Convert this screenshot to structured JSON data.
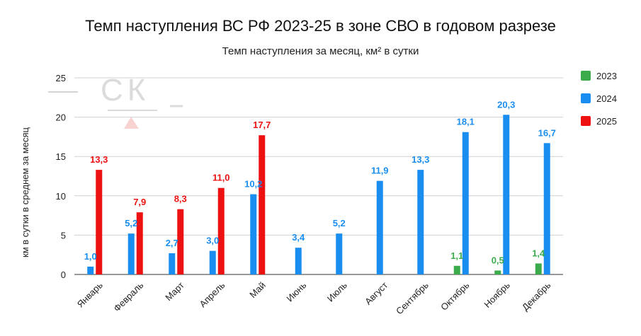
{
  "chart_data": {
    "type": "bar",
    "title": "Темп наступления ВС РФ 2023-25 в зоне СВО в годовом разрезе",
    "subtitle": "Темп наступления за месяц, км² в сутки",
    "xlabel": "",
    "ylabel": "км в сутки в среднем за месяц",
    "ylim": [
      0,
      25
    ],
    "yticks": [
      0,
      5,
      10,
      15,
      20,
      25
    ],
    "grid": true,
    "legend_position": "right",
    "watermark": "СК",
    "categories": [
      "Январь",
      "Февраль",
      "Март",
      "Апрель",
      "Май",
      "Июнь",
      "Июль",
      "Август",
      "Сентябрь",
      "Октябрь",
      "Ноябрь",
      "Декабрь"
    ],
    "series": [
      {
        "name": "2023",
        "color": "#3cab4b",
        "values": [
          null,
          null,
          null,
          null,
          null,
          null,
          null,
          null,
          null,
          1.1,
          0.5,
          1.4
        ],
        "labels": [
          "",
          "",
          "",
          "",
          "",
          "",
          "",
          "",
          "",
          "1,1",
          "0,5",
          "1,4"
        ]
      },
      {
        "name": "2024",
        "color": "#1a8ef0",
        "values": [
          1.0,
          5.2,
          2.7,
          3.0,
          10.2,
          3.4,
          5.2,
          11.9,
          13.3,
          18.1,
          20.3,
          16.7
        ],
        "labels": [
          "1,0",
          "5,2",
          "2,7",
          "3,0",
          "10,2",
          "3,4",
          "5,2",
          "11,9",
          "13,3",
          "18,1",
          "20,3",
          "16,7"
        ]
      },
      {
        "name": "2025",
        "color": "#ee1111",
        "values": [
          13.3,
          7.9,
          8.3,
          11.0,
          17.7,
          null,
          null,
          null,
          null,
          null,
          null,
          null
        ],
        "labels": [
          "13,3",
          "7,9",
          "8,3",
          "11,0",
          "17,7",
          "",
          "",
          "",
          "",
          "",
          "",
          ""
        ]
      }
    ]
  }
}
